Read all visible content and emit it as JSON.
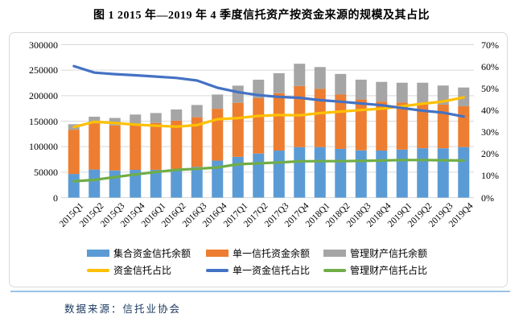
{
  "figure": {
    "title": "图 1  2015 年—2019 年 4 季度信托资产按资金来源的规模及其占比",
    "source": "数据来源：信托业协会"
  },
  "colors": {
    "divider": "#9CC2E5",
    "source_text": "#17365D",
    "grid": "#D9D9D9",
    "frame_border": "#D9D9D9",
    "axis_text": "#000000"
  },
  "chart_data": {
    "type": "combo_stacked_bar_line",
    "title": "图 1  2015 年—2019 年 4 季度信托资产按资金来源的规模及其占比",
    "xlabel": "",
    "ylabel_left": "",
    "ylabel_right": "",
    "grid": true,
    "legend_position": "bottom",
    "categories": [
      "2015Q1",
      "2015Q2",
      "2015Q3",
      "2015Q4",
      "2016Q1",
      "2016Q2",
      "2016Q3",
      "2016Q4",
      "2017Q1",
      "2017Q2",
      "2017Q3",
      "2017Q4",
      "2018Q1",
      "2018Q2",
      "2018Q3",
      "2018Q4",
      "2019Q1",
      "2019Q2",
      "2019Q3",
      "2019Q4"
    ],
    "left_axis": {
      "min": 0,
      "max": 300000,
      "step": 50000,
      "tick_values": [
        300000,
        250000,
        200000,
        150000,
        100000,
        50000,
        0
      ],
      "tick_labels": [
        "300000",
        "250000",
        "200000",
        "150000",
        "100000",
        "50000",
        "0"
      ]
    },
    "right_axis": {
      "min": 0,
      "max": 70,
      "step": 10,
      "tick_values": [
        70,
        60,
        50,
        40,
        30,
        20,
        10,
        0
      ],
      "tick_labels": [
        "70%",
        "60%",
        "50%",
        "40%",
        "30%",
        "20%",
        "10%",
        "0%"
      ]
    },
    "bar_series": [
      {
        "name": "集合资金信托余额",
        "color": "#5B9BD5",
        "values": [
          46500,
          55100,
          53300,
          54400,
          54600,
          56200,
          60300,
          72600,
          80000,
          86500,
          92300,
          99000,
          99100,
          95600,
          92800,
          92400,
          94200,
          96900,
          96800,
          99200
        ]
      },
      {
        "name": "单一信托资金余额",
        "color": "#ED7D31",
        "values": [
          86700,
          90800,
          88300,
          91300,
          91900,
          94700,
          97400,
          101700,
          106100,
          108500,
          112500,
          120000,
          114200,
          106500,
          99700,
          96000,
          92400,
          89700,
          85500,
          80100
        ]
      },
      {
        "name": "管理财产信托余额",
        "color": "#A5A5A5",
        "values": [
          10800,
          12900,
          14700,
          17300,
          19400,
          22000,
          24000,
          27900,
          33600,
          36300,
          39300,
          43600,
          42800,
          40500,
          38900,
          38600,
          38800,
          38800,
          37600,
          36700
        ]
      }
    ],
    "line_series": [
      {
        "name": "资金信托占比",
        "color": "#FFC000",
        "values": [
          32.3,
          34.7,
          34.1,
          33.4,
          32.9,
          32.5,
          33.2,
          35.9,
          36.4,
          37.4,
          37.8,
          37.7,
          38.7,
          39.4,
          40.1,
          40.7,
          41.8,
          43.0,
          44.0,
          45.9
        ]
      },
      {
        "name": "单一资金信托占比",
        "color": "#4472C4",
        "values": [
          60.2,
          57.2,
          56.5,
          56.0,
          55.4,
          54.8,
          53.6,
          50.3,
          48.3,
          46.9,
          46.1,
          45.7,
          44.6,
          43.9,
          43.1,
          42.3,
          41.0,
          39.8,
          38.9,
          37.1
        ]
      },
      {
        "name": "管理财产信托占比",
        "color": "#70AD47",
        "values": [
          7.5,
          8.1,
          9.4,
          10.6,
          11.7,
          12.7,
          13.2,
          13.8,
          15.3,
          15.7,
          16.1,
          16.6,
          16.7,
          16.7,
          16.8,
          17.0,
          17.2,
          17.2,
          17.1,
          17.0
        ]
      }
    ]
  }
}
